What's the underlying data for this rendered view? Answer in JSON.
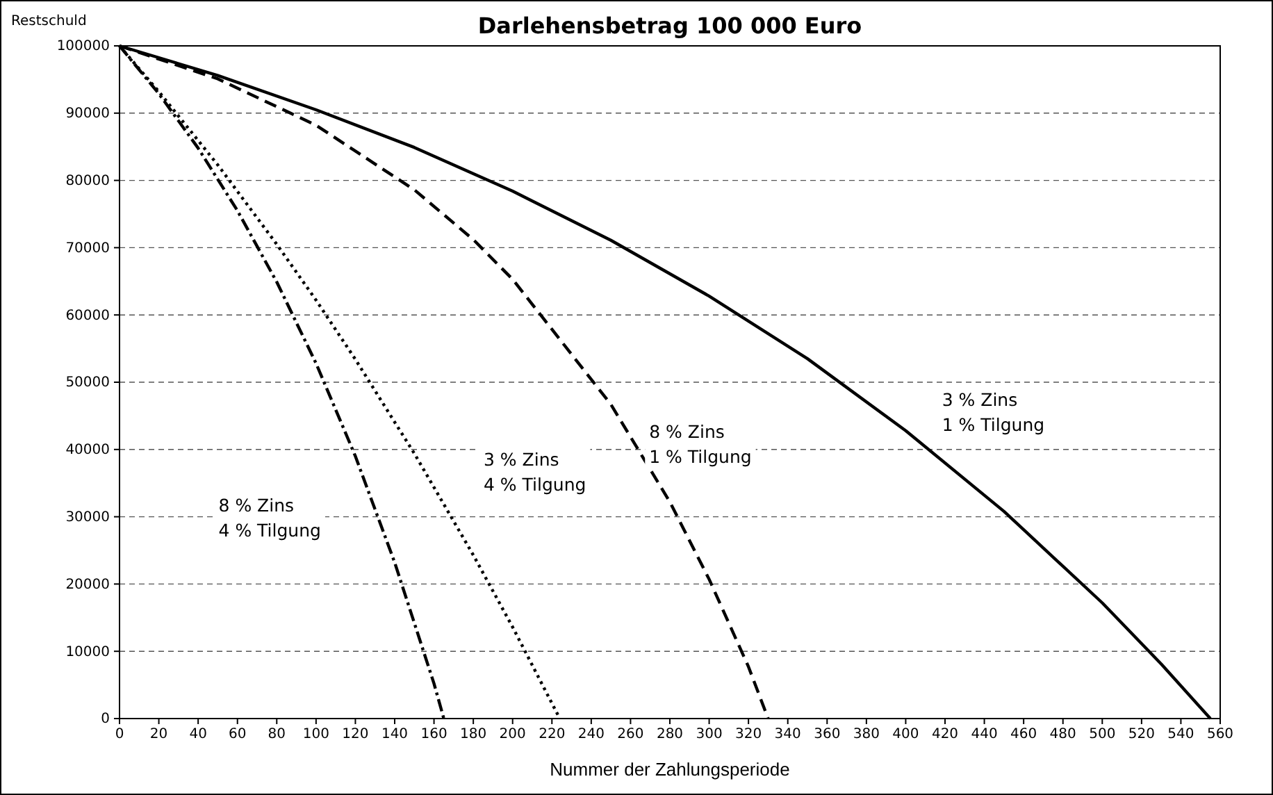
{
  "chart_data": {
    "type": "line",
    "title": "Darlehensbetrag 100 000 Euro",
    "xlabel": "Nummer der Zahlungsperiode",
    "ylabel": "Restschuld",
    "xlim": [
      0,
      560
    ],
    "xticks": [
      0,
      20,
      40,
      60,
      80,
      100,
      120,
      140,
      160,
      180,
      200,
      220,
      240,
      260,
      280,
      300,
      320,
      340,
      360,
      380,
      400,
      420,
      440,
      460,
      480,
      500,
      520,
      540,
      560
    ],
    "ylim": [
      0,
      100000
    ],
    "yticks": [
      0,
      10000,
      20000,
      30000,
      40000,
      50000,
      60000,
      70000,
      80000,
      90000,
      100000
    ],
    "grid": "y",
    "marker": "none",
    "series": [
      {
        "name": "3 % Zins\n1 % Tilgung",
        "color": "#000000",
        "line_style": "solid",
        "x": [
          0,
          50,
          100,
          150,
          200,
          250,
          300,
          350,
          400,
          450,
          500,
          530,
          555
        ],
        "values": [
          100000,
          95600,
          90500,
          84900,
          78400,
          71100,
          62800,
          53500,
          42800,
          30800,
          17200,
          8100,
          0
        ]
      },
      {
        "name": "8 % Zins\n1 % Tilgung",
        "color": "#000000",
        "line_style": "dashed",
        "x": [
          0,
          50,
          100,
          150,
          180,
          200,
          250,
          280,
          300,
          320,
          330
        ],
        "values": [
          100000,
          95100,
          88200,
          78600,
          71200,
          65300,
          46700,
          32200,
          20700,
          7700,
          0
        ]
      },
      {
        "name": "3 % Zins\n4 % Tilgung",
        "color": "#000000",
        "line_style": "dotted",
        "x": [
          0,
          20,
          50,
          80,
          100,
          120,
          150,
          180,
          200,
          224
        ],
        "values": [
          100000,
          93200,
          82300,
          70500,
          62200,
          53400,
          39400,
          24300,
          13600,
          0
        ]
      },
      {
        "name": "8 % Zins\n4 % Tilgung",
        "color": "#000000",
        "line_style": "dashdot",
        "x": [
          0,
          20,
          40,
          60,
          80,
          100,
          120,
          140,
          160,
          165
        ],
        "values": [
          100000,
          92900,
          84800,
          75500,
          64900,
          52800,
          39000,
          23200,
          5200,
          0
        ]
      }
    ]
  }
}
